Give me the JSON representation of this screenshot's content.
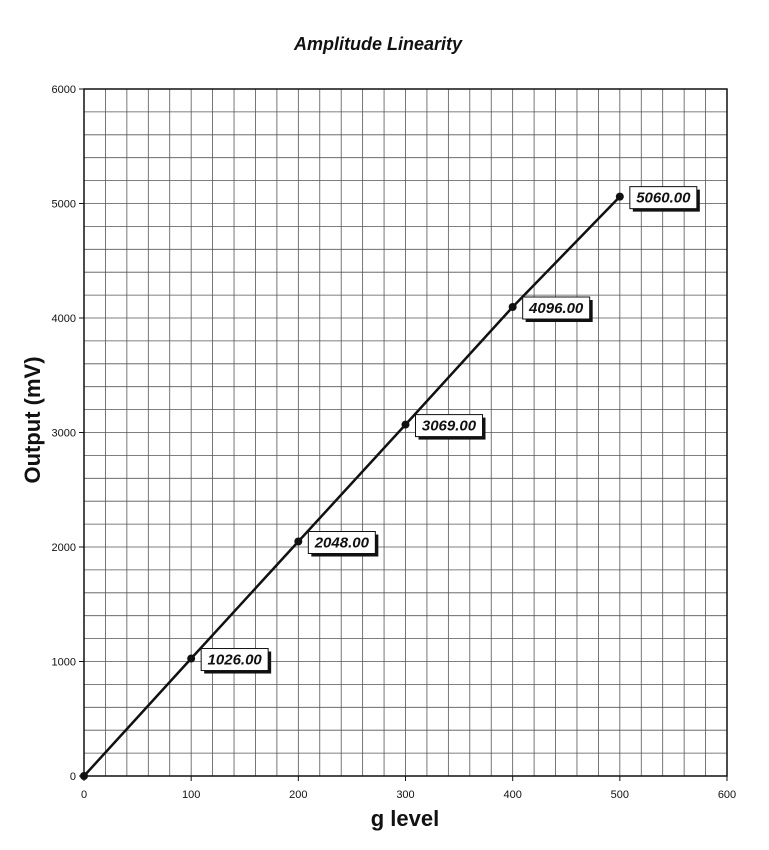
{
  "chart_data": {
    "type": "line",
    "title": "Amplitude Linearity",
    "xlabel": "g level",
    "ylabel": "Output (mV)",
    "xlim": [
      0,
      600
    ],
    "ylim": [
      0,
      6000
    ],
    "x_ticks": [
      "0",
      "100",
      "200",
      "300",
      "400",
      "500",
      "600"
    ],
    "y_ticks": [
      "0",
      "1000",
      "2000",
      "3000",
      "4000",
      "5000",
      "6000"
    ],
    "grid": true,
    "series": [
      {
        "x": [
          0,
          100,
          200,
          300,
          400,
          500
        ],
        "y": [
          0,
          1026,
          2048,
          3069,
          4096,
          5060
        ],
        "data_labels": [
          "",
          "1026.00",
          "2048.00",
          "3069.00",
          "4096.00",
          "5060.00"
        ]
      }
    ]
  }
}
